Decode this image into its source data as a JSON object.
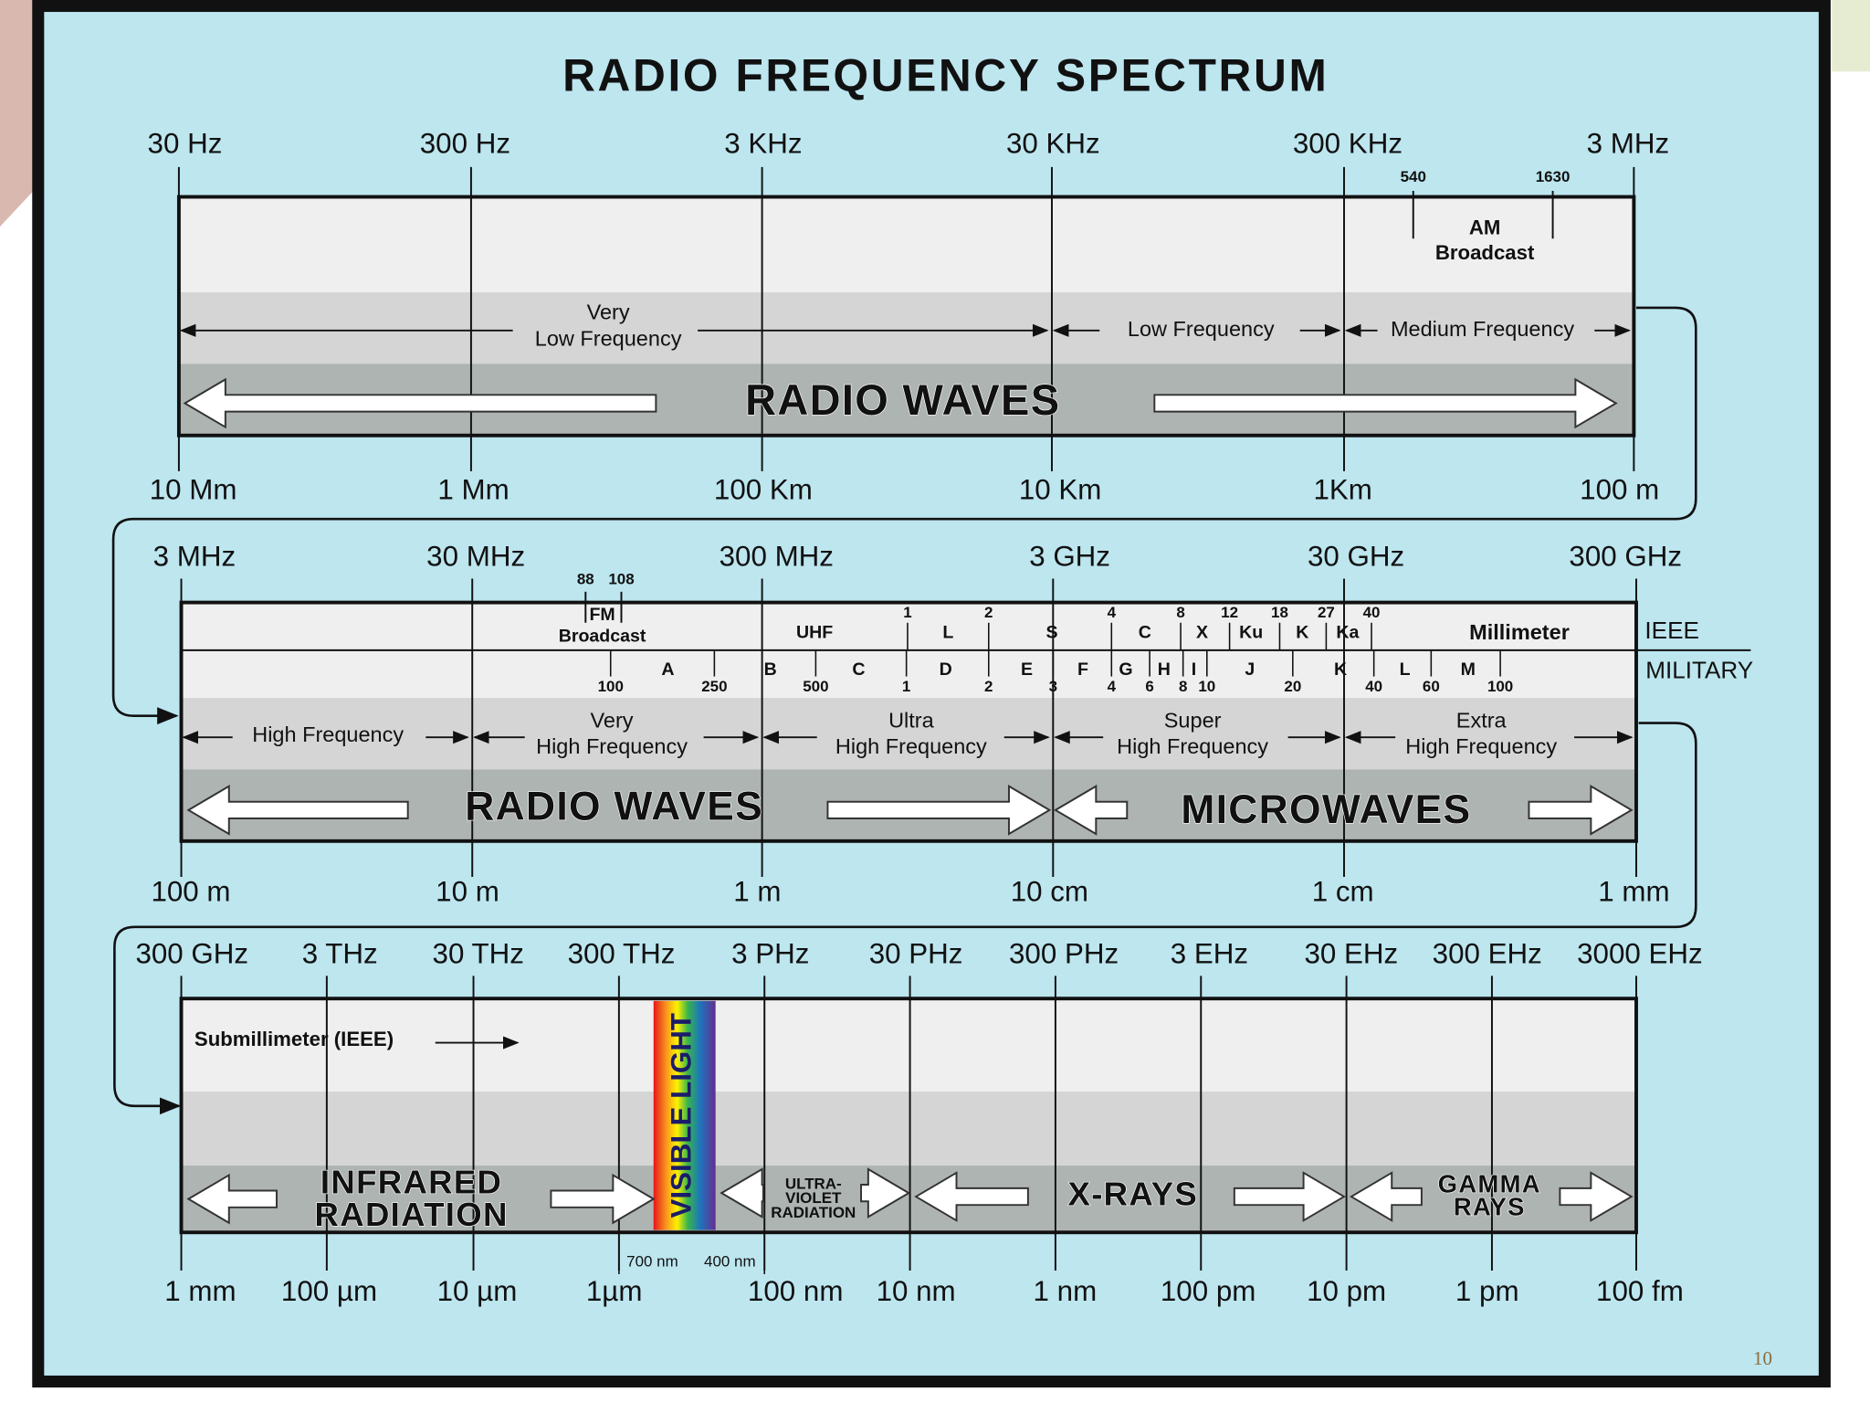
{
  "title": "RADIO FREQUENCY SPECTRUM",
  "page_number": "10",
  "panels": [
    {
      "frequencies": [
        "30 Hz",
        "300 Hz",
        "3 KHz",
        "30 KHz",
        "300 KHz",
        "3 MHz"
      ],
      "wavelengths": [
        "10 Mm",
        "1 Mm",
        "100 Km",
        "10 Km",
        "1Km",
        "100 m"
      ],
      "bands": [
        [
          "Very",
          "Low Frequency"
        ],
        [
          "Low Frequency"
        ],
        [
          "Medium Frequency"
        ]
      ],
      "types": [
        [
          "RADIO WAVES"
        ]
      ],
      "am_broadcast": {
        "label": [
          "AM",
          "Broadcast"
        ],
        "limits": [
          "540",
          "1630"
        ]
      }
    },
    {
      "frequencies": [
        "3 MHz",
        "30 MHz",
        "300 MHz",
        "3 GHz",
        "30 GHz",
        "300 GHz"
      ],
      "wavelengths": [
        "100 m",
        "10 m",
        "1 m",
        "10 cm",
        "1 cm",
        "1 mm"
      ],
      "bands": [
        [
          "High Frequency"
        ],
        [
          "Very",
          "High Frequency"
        ],
        [
          "Ultra",
          "High Frequency"
        ],
        [
          "Super",
          "High Frequency"
        ],
        [
          "Extra",
          "High Frequency"
        ]
      ],
      "types": [
        [
          "RADIO WAVES"
        ],
        [
          "MICROWAVES"
        ]
      ],
      "fm_broadcast": {
        "label": [
          "FM",
          "Broadcast"
        ],
        "limits": [
          "88",
          "108"
        ]
      },
      "ieee": {
        "label": "IEEE",
        "bands": [
          "UHF",
          "L",
          "S",
          "C",
          "X",
          "Ku",
          "K",
          "Ka",
          "Millimeter"
        ],
        "limits": [
          "1",
          "2",
          "4",
          "8",
          "12",
          "18",
          "27",
          "40"
        ]
      },
      "military": {
        "label": "MILITARY",
        "bands": [
          "A",
          "B",
          "C",
          "D",
          "E",
          "F",
          "G",
          "H",
          "I",
          "J",
          "K",
          "L",
          "M"
        ],
        "limits": [
          "100",
          "250",
          "500",
          "1",
          "2",
          "3",
          "4",
          "6",
          "8",
          "10",
          "20",
          "40",
          "60",
          "100"
        ]
      }
    },
    {
      "frequencies": [
        "300 GHz",
        "3 THz",
        "30 THz",
        "300 THz",
        "3 PHz",
        "30 PHz",
        "300 PHz",
        "3 EHz",
        "30 EHz",
        "300 EHz",
        "3000 EHz"
      ],
      "wavelengths": [
        "1 mm",
        "100 µm",
        "10 µm",
        "1µm",
        "100 nm",
        "10 nm",
        "1 nm",
        "100 pm",
        "10 pm",
        "1 pm",
        "100 fm"
      ],
      "note": "Submillimeter (IEEE)",
      "types": [
        [
          "INFRARED",
          "RADIATION"
        ],
        [
          "VISIBLE LIGHT"
        ],
        [
          "ULTRA-",
          "VIOLET",
          "RADIATION"
        ],
        [
          "X-RAYS"
        ],
        [
          "GAMMA",
          "RAYS"
        ]
      ],
      "visible_limits": [
        "700 nm",
        "400 nm"
      ]
    }
  ]
}
